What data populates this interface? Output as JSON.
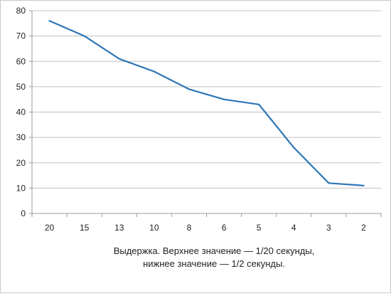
{
  "chart_data": {
    "type": "line",
    "categories": [
      "20",
      "15",
      "13",
      "10",
      "8",
      "6",
      "5",
      "4",
      "3",
      "2"
    ],
    "series": [
      {
        "values": [
          76,
          70,
          61,
          56,
          49,
          45,
          43,
          26,
          12,
          11
        ]
      }
    ],
    "title": "",
    "xlabel": "Выдержка. Верхнее значение — 1/20 секунды,",
    "xlabel_line2": "нижнее значение — 1/2 секунды.",
    "ylabel": "",
    "ylim": [
      0,
      80
    ],
    "yticks": [
      0,
      10,
      20,
      30,
      40,
      50,
      60,
      70,
      80
    ],
    "grid": "horizontal",
    "legend": "none",
    "colors": {
      "line": "#2e75b6",
      "grid": "#c0c0c0",
      "axis": "#9a9a9a"
    }
  }
}
